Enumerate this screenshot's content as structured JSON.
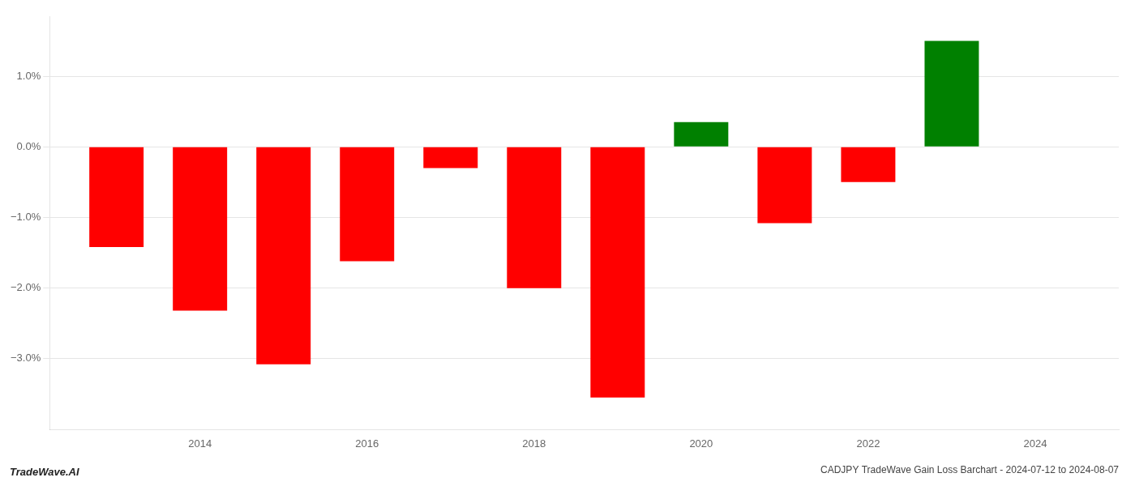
{
  "chart_data": {
    "type": "bar",
    "title": "CADJPY TradeWave Gain Loss Barchart - 2024-07-12 to 2024-08-07",
    "annotations": [
      "TradeWave.AI"
    ],
    "x": [
      2013,
      2014,
      2015,
      2016,
      2017,
      2018,
      2019,
      2020,
      2021,
      2022,
      2023
    ],
    "values": [
      -0.0142,
      -0.0232,
      -0.0308,
      -0.0162,
      -0.003,
      -0.02,
      -0.0355,
      0.0035,
      -0.0108,
      -0.005,
      0.015
    ],
    "colors": [
      "#ff0000",
      "#ff0000",
      "#ff0000",
      "#ff0000",
      "#ff0000",
      "#ff0000",
      "#ff0000",
      "#008000",
      "#ff0000",
      "#ff0000",
      "#008000"
    ],
    "xlim": [
      2012.2,
      2025.0
    ],
    "xticks": [
      2014,
      2016,
      2018,
      2020,
      2022,
      2024
    ],
    "ylim": [
      -0.04,
      0.0185
    ],
    "yticks": [
      {
        "value": 0.01,
        "label": "1.0%"
      },
      {
        "value": 0.0,
        "label": "0.0%"
      },
      {
        "value": -0.01,
        "label": "−1.0%"
      },
      {
        "value": -0.02,
        "label": "−2.0%"
      },
      {
        "value": -0.03,
        "label": "−3.0%"
      }
    ],
    "grid": true
  }
}
